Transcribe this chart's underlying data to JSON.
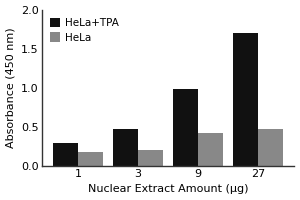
{
  "categories": [
    1,
    3,
    9,
    27
  ],
  "series": [
    {
      "label": "HeLa+TPA",
      "color": "#111111",
      "values": [
        0.3,
        0.47,
        0.98,
        1.7
      ]
    },
    {
      "label": "HeLa",
      "color": "#888888",
      "values": [
        0.18,
        0.2,
        0.42,
        0.47
      ]
    }
  ],
  "xlabel": "Nuclear Extract Amount (μg)",
  "ylabel": "Absorbance (450 nm)",
  "ylim": [
    0,
    2.0
  ],
  "yticks": [
    0.0,
    0.5,
    1.0,
    1.5,
    2.0
  ],
  "xtick_labels": [
    "1",
    "3",
    "9",
    "27"
  ],
  "bar_width": 0.42,
  "legend_loc": "upper left",
  "background_color": "#ffffff",
  "xlabel_fontsize": 8,
  "ylabel_fontsize": 8,
  "tick_fontsize": 8,
  "legend_fontsize": 7.5
}
